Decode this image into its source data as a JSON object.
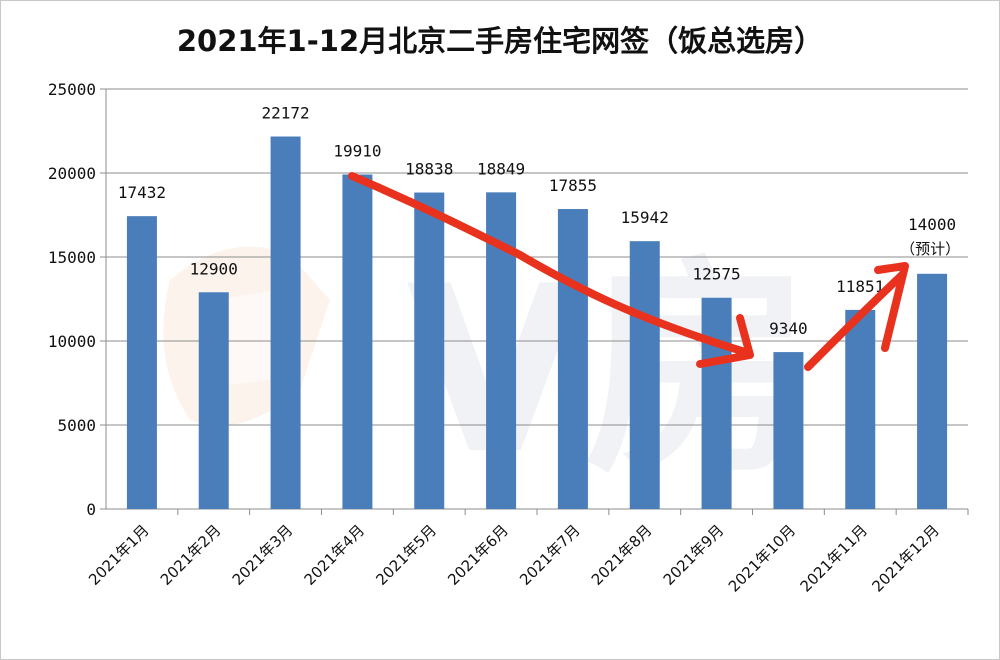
{
  "chart_data": {
    "type": "bar",
    "title": "2021年1-12月北京二手房住宅网签（饭总选房）",
    "categories": [
      "2021年1月",
      "2021年2月",
      "2021年3月",
      "2021年4月",
      "2021年5月",
      "2021年6月",
      "2021年7月",
      "2021年8月",
      "2021年9月",
      "2021年10月",
      "2021年11月",
      "2021年12月"
    ],
    "values": [
      17432,
      12900,
      22172,
      19910,
      18838,
      18849,
      17855,
      15942,
      12575,
      9340,
      11851,
      14000
    ],
    "data_labels": [
      "17432",
      "12900",
      "22172",
      "19910",
      "18838",
      "18849",
      "17855",
      "15942",
      "12575",
      "9340",
      "11851",
      "14000"
    ],
    "last_bar_note": "（预计）",
    "ylim": [
      0,
      25000
    ],
    "yticks": [
      0,
      5000,
      10000,
      15000,
      20000,
      25000
    ],
    "ytick_labels": [
      "0",
      "5000",
      "10000",
      "15000",
      "20000",
      "25000"
    ],
    "grid": true,
    "xlabel": "",
    "ylabel": "",
    "bar_color": "#4a7ebb",
    "arrow_color": "#e8321e"
  },
  "watermark": {
    "text": "V房",
    "color": "#e9a66b"
  }
}
